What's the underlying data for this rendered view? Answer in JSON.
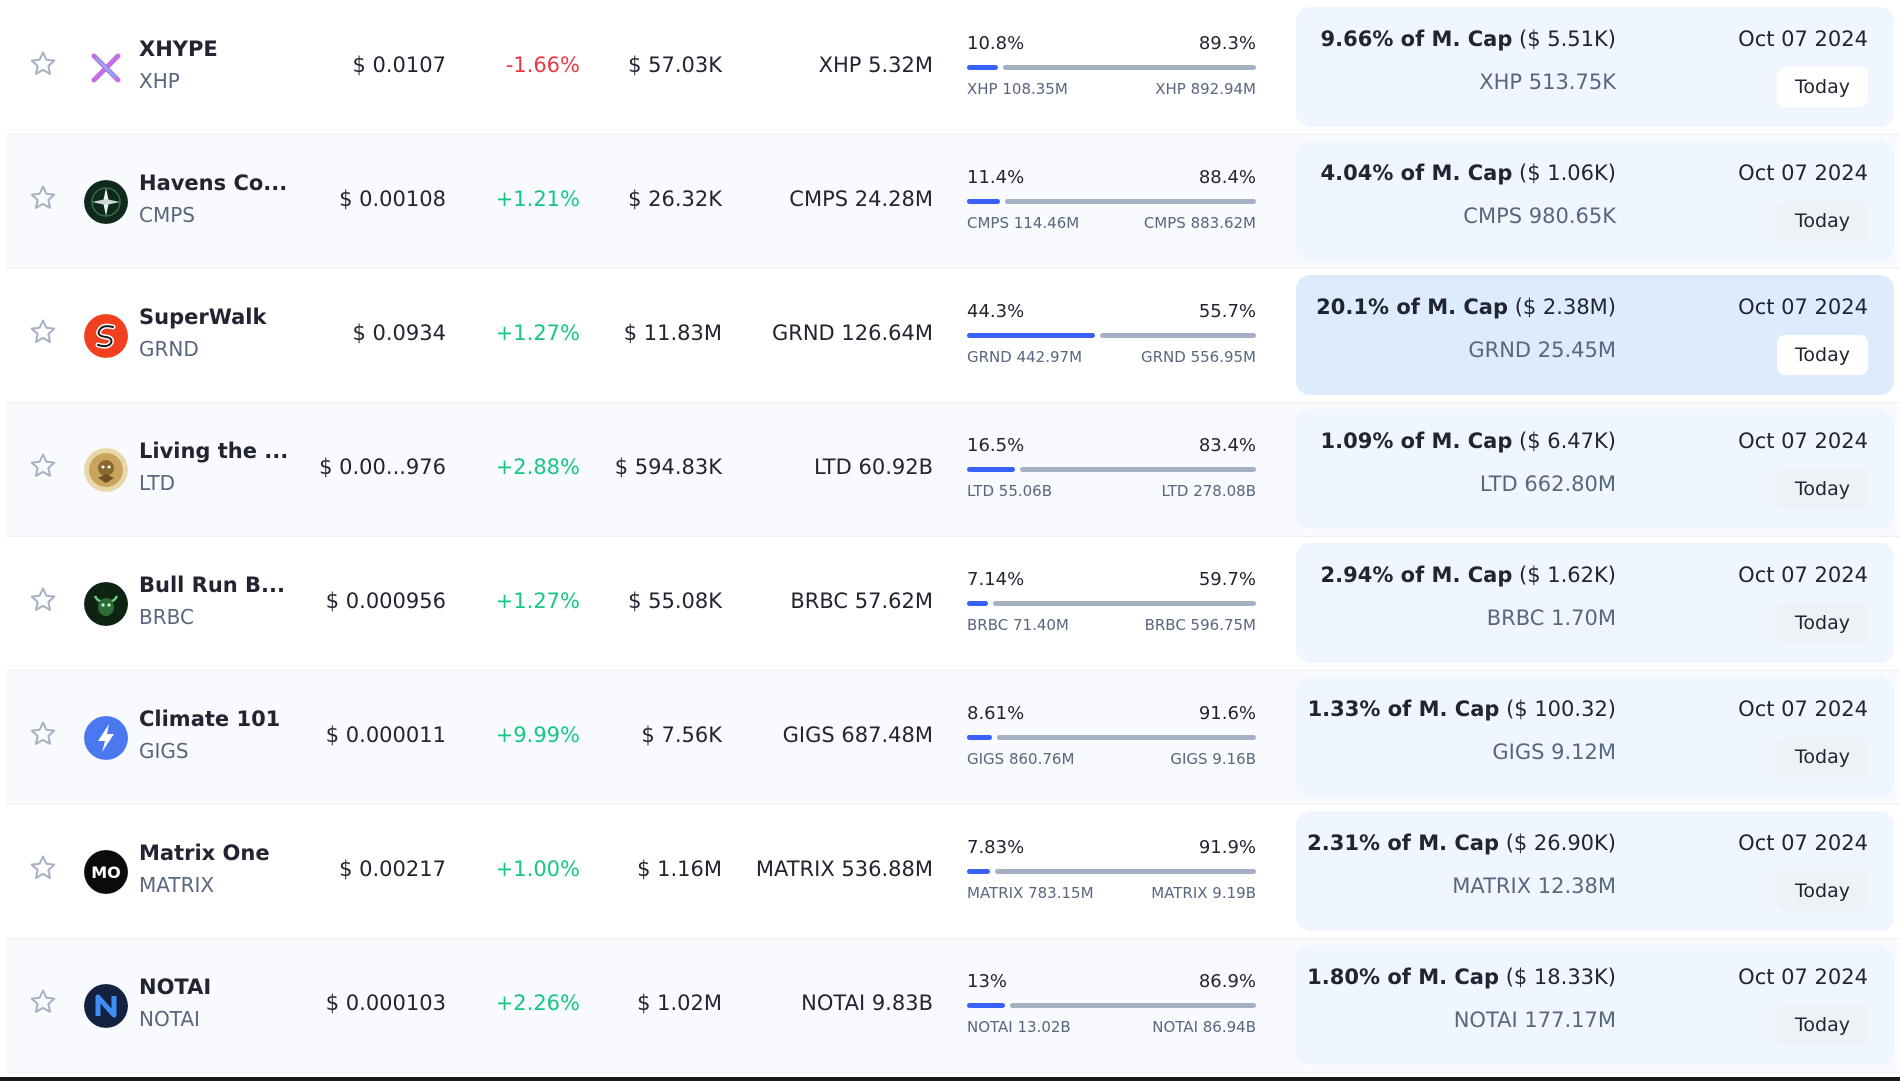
{
  "colors": {
    "positive": "#16c784",
    "negative": "#ea3943",
    "bar_primary": "#3861fb",
    "bar_secondary": "#a6b0c3",
    "card_bg": "#f0f6ff",
    "card_highlight": "#dcecfd"
  },
  "rows": [
    {
      "name": "XHYPE",
      "symbol": "XHP",
      "logo_icon": "xhype-logo-icon",
      "price": "$ 0.0107",
      "change": "-1.66%",
      "direction": "down",
      "volume": "$ 57.03K",
      "supply": "XHP 5.32M",
      "split": {
        "left_pct": "10.8%",
        "right_pct": "89.3%",
        "left_amount": "XHP 108.35M",
        "right_amount": "XHP 892.94M",
        "left_fraction": 0.108
      },
      "unlock": {
        "pct": "9.66% of M. Cap",
        "value": "($ 5.51K)",
        "amount": "XHP 513.75K",
        "date": "Oct 07 2024",
        "badge": "Today",
        "highlight": false
      }
    },
    {
      "name": "Havens Co...",
      "symbol": "CMPS",
      "logo_icon": "compass-logo-icon",
      "price": "$ 0.00108",
      "change": "+1.21%",
      "direction": "up",
      "volume": "$ 26.32K",
      "supply": "CMPS 24.28M",
      "split": {
        "left_pct": "11.4%",
        "right_pct": "88.4%",
        "left_amount": "CMPS 114.46M",
        "right_amount": "CMPS 883.62M",
        "left_fraction": 0.114
      },
      "unlock": {
        "pct": "4.04% of M. Cap",
        "value": "($ 1.06K)",
        "amount": "CMPS 980.65K",
        "date": "Oct 07 2024",
        "badge": "Today",
        "highlight": false
      }
    },
    {
      "name": "SuperWalk",
      "symbol": "GRND",
      "logo_icon": "superwalk-logo-icon",
      "price": "$ 0.0934",
      "change": "+1.27%",
      "direction": "up",
      "volume": "$ 11.83M",
      "supply": "GRND 126.64M",
      "split": {
        "left_pct": "44.3%",
        "right_pct": "55.7%",
        "left_amount": "GRND 442.97M",
        "right_amount": "GRND 556.95M",
        "left_fraction": 0.443
      },
      "unlock": {
        "pct": "20.1% of M. Cap",
        "value": "($ 2.38M)",
        "amount": "GRND 25.45M",
        "date": "Oct 07 2024",
        "badge": "Today",
        "highlight": true
      }
    },
    {
      "name": "Living the ...",
      "symbol": "LTD",
      "logo_icon": "lion-crest-logo-icon",
      "price": "$ 0.00...976",
      "change": "+2.88%",
      "direction": "up",
      "volume": "$ 594.83K",
      "supply": "LTD 60.92B",
      "split": {
        "left_pct": "16.5%",
        "right_pct": "83.4%",
        "left_amount": "LTD 55.06B",
        "right_amount": "LTD 278.08B",
        "left_fraction": 0.165
      },
      "unlock": {
        "pct": "1.09% of M. Cap",
        "value": "($ 6.47K)",
        "amount": "LTD 662.80M",
        "date": "Oct 07 2024",
        "badge": "Today",
        "highlight": false
      }
    },
    {
      "name": "Bull Run B...",
      "symbol": "BRBC",
      "logo_icon": "bull-logo-icon",
      "price": "$ 0.000956",
      "change": "+1.27%",
      "direction": "up",
      "volume": "$ 55.08K",
      "supply": "BRBC 57.62M",
      "split": {
        "left_pct": "7.14%",
        "right_pct": "59.7%",
        "left_amount": "BRBC 71.40M",
        "right_amount": "BRBC 596.75M",
        "left_fraction": 0.0714
      },
      "unlock": {
        "pct": "2.94% of M. Cap",
        "value": "($ 1.62K)",
        "amount": "BRBC 1.70M",
        "date": "Oct 07 2024",
        "badge": "Today",
        "highlight": false
      }
    },
    {
      "name": "Climate 101",
      "symbol": "GIGS",
      "logo_icon": "lightning-logo-icon",
      "price": "$ 0.000011",
      "change": "+9.99%",
      "direction": "up",
      "volume": "$ 7.56K",
      "supply": "GIGS 687.48M",
      "split": {
        "left_pct": "8.61%",
        "right_pct": "91.6%",
        "left_amount": "GIGS 860.76M",
        "right_amount": "GIGS 9.16B",
        "left_fraction": 0.0861
      },
      "unlock": {
        "pct": "1.33% of M. Cap",
        "value": "($ 100.32)",
        "amount": "GIGS 9.12M",
        "date": "Oct 07 2024",
        "badge": "Today",
        "highlight": false
      }
    },
    {
      "name": "Matrix One",
      "symbol": "MATRIX",
      "logo_icon": "mo-logo-icon",
      "price": "$ 0.00217",
      "change": "+1.00%",
      "direction": "up",
      "volume": "$ 1.16M",
      "supply": "MATRIX 536.88M",
      "split": {
        "left_pct": "7.83%",
        "right_pct": "91.9%",
        "left_amount": "MATRIX 783.15M",
        "right_amount": "MATRIX 9.19B",
        "left_fraction": 0.0783
      },
      "unlock": {
        "pct": "2.31% of M. Cap",
        "value": "($ 26.90K)",
        "amount": "MATRIX 12.38M",
        "date": "Oct 07 2024",
        "badge": "Today",
        "highlight": false
      }
    },
    {
      "name": "NOTAI",
      "symbol": "NOTAI",
      "logo_icon": "notai-logo-icon",
      "price": "$ 0.000103",
      "change": "+2.26%",
      "direction": "up",
      "volume": "$ 1.02M",
      "supply": "NOTAI 9.83B",
      "split": {
        "left_pct": "13%",
        "right_pct": "86.9%",
        "left_amount": "NOTAI 13.02B",
        "right_amount": "NOTAI 86.94B",
        "left_fraction": 0.13
      },
      "unlock": {
        "pct": "1.80% of M. Cap",
        "value": "($ 18.33K)",
        "amount": "NOTAI 177.17M",
        "date": "Oct 07 2024",
        "badge": "Today",
        "highlight": false
      }
    }
  ]
}
